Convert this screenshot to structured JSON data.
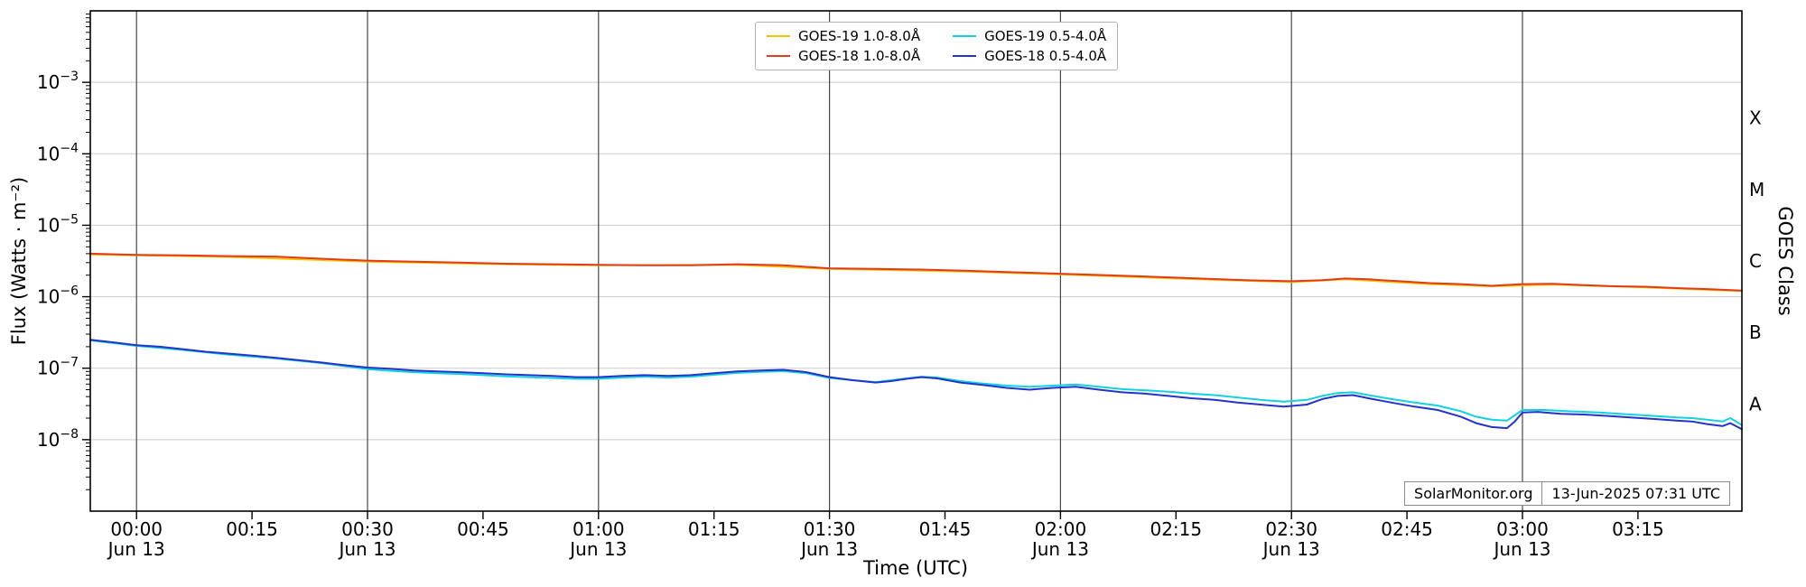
{
  "chart_data": {
    "type": "line",
    "title": "",
    "xlabel": "Time (UTC)",
    "ylabel": "Flux (Watts · m⁻²)",
    "ylabel_right": "GOES Class",
    "grid": {
      "horizontal": true,
      "vertical_major": true
    },
    "legend_position": "top-center",
    "x_domain_minutes": [
      -6,
      208.5
    ],
    "y_domain_log10": [
      -9,
      -2
    ],
    "x_ticks": [
      {
        "minute": 0,
        "label": "00:00",
        "date": "Jun 13"
      },
      {
        "minute": 15,
        "label": "00:15"
      },
      {
        "minute": 30,
        "label": "00:30",
        "date": "Jun 13"
      },
      {
        "minute": 45,
        "label": "00:45"
      },
      {
        "minute": 60,
        "label": "01:00",
        "date": "Jun 13"
      },
      {
        "minute": 75,
        "label": "01:15"
      },
      {
        "minute": 90,
        "label": "01:30",
        "date": "Jun 13"
      },
      {
        "minute": 105,
        "label": "01:45"
      },
      {
        "minute": 120,
        "label": "02:00",
        "date": "Jun 13"
      },
      {
        "minute": 135,
        "label": "02:15"
      },
      {
        "minute": 150,
        "label": "02:30",
        "date": "Jun 13"
      },
      {
        "minute": 165,
        "label": "02:45"
      },
      {
        "minute": 180,
        "label": "03:00",
        "date": "Jun 13"
      },
      {
        "minute": 195,
        "label": "03:15"
      }
    ],
    "y_ticks": [
      {
        "log10": -3,
        "base": "10",
        "exp": "−3",
        "label": "10⁻³"
      },
      {
        "log10": -4,
        "base": "10",
        "exp": "−4",
        "label": "10⁻⁴"
      },
      {
        "log10": -5,
        "base": "10",
        "exp": "−5",
        "label": "10⁻⁵"
      },
      {
        "log10": -6,
        "base": "10",
        "exp": "−6",
        "label": "10⁻⁶"
      },
      {
        "log10": -7,
        "base": "10",
        "exp": "−7",
        "label": "10⁻⁷"
      },
      {
        "log10": -8,
        "base": "10",
        "exp": "−8",
        "label": "10⁻⁸"
      }
    ],
    "goes_classes": [
      {
        "label": "X",
        "log10": -3.5
      },
      {
        "label": "M",
        "log10": -4.5
      },
      {
        "label": "C",
        "log10": -5.5
      },
      {
        "label": "B",
        "log10": -6.5
      },
      {
        "label": "A",
        "log10": -7.5
      }
    ],
    "legend": [
      {
        "id": "goes19-long",
        "label": "GOES-19 1.0-8.0Å",
        "color": "#f5c400"
      },
      {
        "id": "goes18-long",
        "label": "GOES-18 1.0-8.0Å",
        "color": "#e23b1b"
      },
      {
        "id": "goes19-short",
        "label": "GOES-19 0.5-4.0Å",
        "color": "#12d2e0"
      },
      {
        "id": "goes18-short",
        "label": "GOES-18 0.5-4.0Å",
        "color": "#2333cc"
      }
    ],
    "series": [
      {
        "id": "goes19-long",
        "name": "GOES-19 1.0-8.0Å",
        "color": "#f5c400",
        "points": [
          [
            -6,
            3.9e-06
          ],
          [
            12,
            3.6e-06
          ],
          [
            30,
            3.1e-06
          ],
          [
            48,
            2.85e-06
          ],
          [
            60,
            2.75e-06
          ],
          [
            78,
            2.8e-06
          ],
          [
            90,
            2.45e-06
          ],
          [
            108,
            2.25e-06
          ],
          [
            120,
            2.05e-06
          ],
          [
            138,
            1.75e-06
          ],
          [
            150,
            1.6e-06
          ],
          [
            157,
            1.75e-06
          ],
          [
            168,
            1.5e-06
          ],
          [
            176,
            1.4e-06
          ],
          [
            184,
            1.48e-06
          ],
          [
            196,
            1.35e-06
          ],
          [
            208.5,
            1.2e-06
          ]
        ]
      },
      {
        "id": "goes18-long",
        "name": "GOES-18 1.0-8.0Å",
        "color": "#e23b1b",
        "points": [
          [
            -6,
            4e-06
          ],
          [
            0,
            3.85e-06
          ],
          [
            6,
            3.8e-06
          ],
          [
            12,
            3.7e-06
          ],
          [
            18,
            3.65e-06
          ],
          [
            24,
            3.4e-06
          ],
          [
            30,
            3.2e-06
          ],
          [
            36,
            3.1e-06
          ],
          [
            42,
            3e-06
          ],
          [
            48,
            2.9e-06
          ],
          [
            54,
            2.85e-06
          ],
          [
            60,
            2.8e-06
          ],
          [
            66,
            2.75e-06
          ],
          [
            72,
            2.75e-06
          ],
          [
            78,
            2.85e-06
          ],
          [
            84,
            2.75e-06
          ],
          [
            90,
            2.5e-06
          ],
          [
            96,
            2.45e-06
          ],
          [
            102,
            2.4e-06
          ],
          [
            108,
            2.3e-06
          ],
          [
            114,
            2.2e-06
          ],
          [
            120,
            2.1e-06
          ],
          [
            126,
            2e-06
          ],
          [
            132,
            1.9e-06
          ],
          [
            138,
            1.8e-06
          ],
          [
            144,
            1.7e-06
          ],
          [
            150,
            1.65e-06
          ],
          [
            154,
            1.7e-06
          ],
          [
            157,
            1.8e-06
          ],
          [
            160,
            1.75e-06
          ],
          [
            164,
            1.65e-06
          ],
          [
            168,
            1.55e-06
          ],
          [
            172,
            1.5e-06
          ],
          [
            176,
            1.42e-06
          ],
          [
            180,
            1.5e-06
          ],
          [
            184,
            1.52e-06
          ],
          [
            188,
            1.45e-06
          ],
          [
            192,
            1.4e-06
          ],
          [
            196,
            1.38e-06
          ],
          [
            200,
            1.32e-06
          ],
          [
            204,
            1.28e-06
          ],
          [
            208.5,
            1.22e-06
          ]
        ]
      },
      {
        "id": "goes19-short",
        "name": "GOES-19 0.5-4.0Å",
        "color": "#12d2e0",
        "points": [
          [
            -6,
            2.45e-07
          ],
          [
            0,
            2.05e-07
          ],
          [
            6,
            1.8e-07
          ],
          [
            12,
            1.55e-07
          ],
          [
            18,
            1.37e-07
          ],
          [
            24,
            1.18e-07
          ],
          [
            30,
            9.7e-08
          ],
          [
            33,
            9.2e-08
          ],
          [
            36,
            8.8e-08
          ],
          [
            39,
            8.5e-08
          ],
          [
            42,
            8.3e-08
          ],
          [
            45,
            8e-08
          ],
          [
            48,
            7.7e-08
          ],
          [
            51,
            7.5e-08
          ],
          [
            54,
            7.3e-08
          ],
          [
            57,
            7.1e-08
          ],
          [
            60,
            7.1e-08
          ],
          [
            63,
            7.4e-08
          ],
          [
            66,
            7.6e-08
          ],
          [
            69,
            7.4e-08
          ],
          [
            72,
            7.6e-08
          ],
          [
            75,
            8.1e-08
          ],
          [
            78,
            8.6e-08
          ],
          [
            81,
            8.9e-08
          ],
          [
            84,
            9.1e-08
          ],
          [
            87,
            8.5e-08
          ],
          [
            90,
            7.3e-08
          ],
          [
            93,
            6.8e-08
          ],
          [
            96,
            6.4e-08
          ],
          [
            100,
            7.2e-08
          ],
          [
            102,
            7.6e-08
          ],
          [
            104,
            7.4e-08
          ],
          [
            107,
            6.6e-08
          ],
          [
            110,
            6.1e-08
          ],
          [
            113,
            5.7e-08
          ],
          [
            116,
            5.5e-08
          ],
          [
            119,
            5.7e-08
          ],
          [
            122,
            5.9e-08
          ],
          [
            125,
            5.5e-08
          ],
          [
            128,
            5.1e-08
          ],
          [
            131,
            4.9e-08
          ],
          [
            134,
            4.7e-08
          ],
          [
            137,
            4.4e-08
          ],
          [
            140,
            4.2e-08
          ],
          [
            143,
            3.9e-08
          ],
          [
            146,
            3.6e-08
          ],
          [
            149,
            3.4e-08
          ],
          [
            152,
            3.6e-08
          ],
          [
            154,
            4.1e-08
          ],
          [
            156,
            4.5e-08
          ],
          [
            158,
            4.6e-08
          ],
          [
            160,
            4.2e-08
          ],
          [
            163,
            3.7e-08
          ],
          [
            166,
            3.3e-08
          ],
          [
            169,
            3e-08
          ],
          [
            172,
            2.5e-08
          ],
          [
            174,
            2.1e-08
          ],
          [
            176,
            1.9e-08
          ],
          [
            178,
            1.85e-08
          ],
          [
            180,
            2.6e-08
          ],
          [
            183,
            2.6e-08
          ],
          [
            186,
            2.5e-08
          ],
          [
            190,
            2.4e-08
          ],
          [
            194,
            2.25e-08
          ],
          [
            197,
            2.15e-08
          ],
          [
            200,
            2.05e-08
          ],
          [
            202,
            2e-08
          ],
          [
            204,
            1.9e-08
          ],
          [
            206,
            1.8e-08
          ],
          [
            207,
            2e-08
          ],
          [
            208.5,
            1.6e-08
          ]
        ]
      },
      {
        "id": "goes18-short",
        "name": "GOES-18 0.5-4.0Å",
        "color": "#2333cc",
        "points": [
          [
            -6,
            2.5e-07
          ],
          [
            -3,
            2.3e-07
          ],
          [
            0,
            2.1e-07
          ],
          [
            3,
            2e-07
          ],
          [
            6,
            1.85e-07
          ],
          [
            9,
            1.7e-07
          ],
          [
            12,
            1.6e-07
          ],
          [
            15,
            1.5e-07
          ],
          [
            18,
            1.4e-07
          ],
          [
            21,
            1.3e-07
          ],
          [
            24,
            1.2e-07
          ],
          [
            27,
            1.1e-07
          ],
          [
            30,
            1.02e-07
          ],
          [
            33,
            9.8e-08
          ],
          [
            36,
            9.3e-08
          ],
          [
            39,
            9e-08
          ],
          [
            42,
            8.8e-08
          ],
          [
            45,
            8.5e-08
          ],
          [
            48,
            8.2e-08
          ],
          [
            51,
            8e-08
          ],
          [
            54,
            7.8e-08
          ],
          [
            57,
            7.5e-08
          ],
          [
            60,
            7.5e-08
          ],
          [
            63,
            7.8e-08
          ],
          [
            66,
            8e-08
          ],
          [
            69,
            7.8e-08
          ],
          [
            72,
            8e-08
          ],
          [
            75,
            8.5e-08
          ],
          [
            78,
            9e-08
          ],
          [
            81,
            9.3e-08
          ],
          [
            84,
            9.5e-08
          ],
          [
            87,
            8.8e-08
          ],
          [
            90,
            7.5e-08
          ],
          [
            93,
            6.8e-08
          ],
          [
            96,
            6.3e-08
          ],
          [
            98,
            6.6e-08
          ],
          [
            100,
            7.1e-08
          ],
          [
            102,
            7.5e-08
          ],
          [
            104,
            7.2e-08
          ],
          [
            107,
            6.3e-08
          ],
          [
            110,
            5.8e-08
          ],
          [
            113,
            5.3e-08
          ],
          [
            116,
            5e-08
          ],
          [
            119,
            5.3e-08
          ],
          [
            122,
            5.5e-08
          ],
          [
            125,
            5e-08
          ],
          [
            128,
            4.6e-08
          ],
          [
            131,
            4.4e-08
          ],
          [
            134,
            4.1e-08
          ],
          [
            137,
            3.8e-08
          ],
          [
            140,
            3.6e-08
          ],
          [
            143,
            3.3e-08
          ],
          [
            146,
            3.1e-08
          ],
          [
            149,
            2.9e-08
          ],
          [
            152,
            3.1e-08
          ],
          [
            154,
            3.7e-08
          ],
          [
            156,
            4.1e-08
          ],
          [
            158,
            4.2e-08
          ],
          [
            160,
            3.8e-08
          ],
          [
            163,
            3.3e-08
          ],
          [
            166,
            2.9e-08
          ],
          [
            169,
            2.6e-08
          ],
          [
            172,
            2.1e-08
          ],
          [
            174,
            1.7e-08
          ],
          [
            176,
            1.5e-08
          ],
          [
            178,
            1.45e-08
          ],
          [
            179,
            1.8e-08
          ],
          [
            180,
            2.4e-08
          ],
          [
            182,
            2.45e-08
          ],
          [
            185,
            2.3e-08
          ],
          [
            188,
            2.25e-08
          ],
          [
            191,
            2.15e-08
          ],
          [
            194,
            2.05e-08
          ],
          [
            197,
            1.95e-08
          ],
          [
            200,
            1.85e-08
          ],
          [
            202,
            1.8e-08
          ],
          [
            204,
            1.65e-08
          ],
          [
            206,
            1.55e-08
          ],
          [
            207,
            1.7e-08
          ],
          [
            208.5,
            1.4e-08
          ]
        ]
      }
    ],
    "footer": {
      "source": "SolarMonitor.org",
      "timestamp": "13-Jun-2025 07:31 UTC"
    }
  }
}
